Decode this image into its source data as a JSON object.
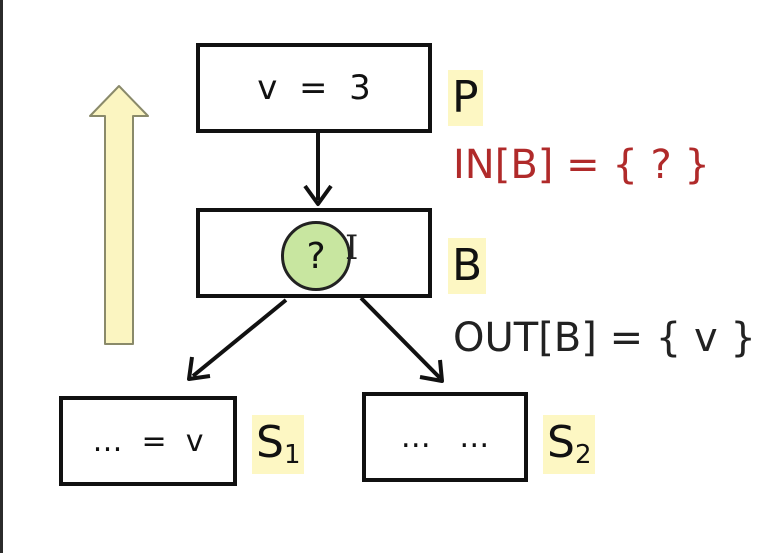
{
  "diagram": {
    "nodes": {
      "p": {
        "text": "v  =  3",
        "tag": "P"
      },
      "b": {
        "marker": "?",
        "tag": "B"
      },
      "s1": {
        "text": "…  =  v",
        "tag": "S",
        "tag_sub": "1"
      },
      "s2": {
        "text": "…   …",
        "tag": "S",
        "tag_sub": "2"
      }
    },
    "in_label": "IN[B] = { ? }",
    "out_label": "OUT[B] = { v }",
    "edges": [
      {
        "from": "p",
        "to": "b"
      },
      {
        "from": "b",
        "to": "s1"
      },
      {
        "from": "b",
        "to": "s2"
      }
    ],
    "colors": {
      "in_label": "#b02a2a",
      "marker_fill": "#c8e6a0",
      "tag_background": "#fdf7c3",
      "direction_arrow_fill": "#fbf5c1"
    },
    "direction_arrow": "upward"
  }
}
